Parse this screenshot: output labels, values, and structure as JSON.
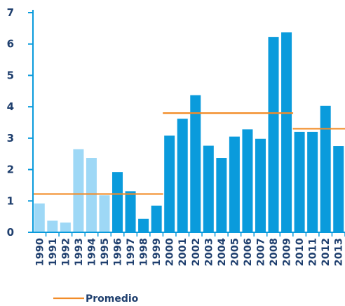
{
  "chart_data": {
    "type": "bar",
    "categories": [
      "1990",
      "1991",
      "1992",
      "1993",
      "1994",
      "1995",
      "1996",
      "1997",
      "1998",
      "1999",
      "2000",
      "2001",
      "2002",
      "2003",
      "2004",
      "2005",
      "2006",
      "2007",
      "2008",
      "2009",
      "2010",
      "2011",
      "2012",
      "2013"
    ],
    "values": [
      0.92,
      0.37,
      0.31,
      2.65,
      2.37,
      1.18,
      1.92,
      1.31,
      0.43,
      0.85,
      3.08,
      3.62,
      4.37,
      2.76,
      2.37,
      3.05,
      3.28,
      2.98,
      6.22,
      6.37,
      3.2,
      3.2,
      4.03,
      2.75
    ],
    "bar_colors": [
      "#9ed8f6",
      "#9ed8f6",
      "#9ed8f6",
      "#9ed8f6",
      "#9ed8f6",
      "#9ed8f6",
      "#0a9bdc",
      "#0a9bdc",
      "#0a9bdc",
      "#0a9bdc",
      "#0a9bdc",
      "#0a9bdc",
      "#0a9bdc",
      "#0a9bdc",
      "#0a9bdc",
      "#0a9bdc",
      "#0a9bdc",
      "#0a9bdc",
      "#0a9bdc",
      "#0a9bdc",
      "#0a9bdc",
      "#0a9bdc",
      "#0a9bdc",
      "#0a9bdc"
    ],
    "averages": [
      {
        "from": "1990",
        "to": "1999",
        "value": 1.22
      },
      {
        "from": "2000",
        "to": "2009",
        "value": 3.8
      },
      {
        "from": "2010",
        "to": "2013",
        "value": 3.3
      }
    ],
    "legend": {
      "label": "Promedio",
      "position": "bottom-left"
    },
    "ylim": [
      0,
      7
    ],
    "yticks": [
      "0",
      "1",
      "2",
      "3",
      "4",
      "5",
      "6",
      "7"
    ],
    "grid": false,
    "colors": {
      "bar": "#0a9bdc",
      "bar_light": "#9ed8f6",
      "average": "#f28c28",
      "axis": "#0a9bdc",
      "text": "#1f3f6e"
    }
  }
}
